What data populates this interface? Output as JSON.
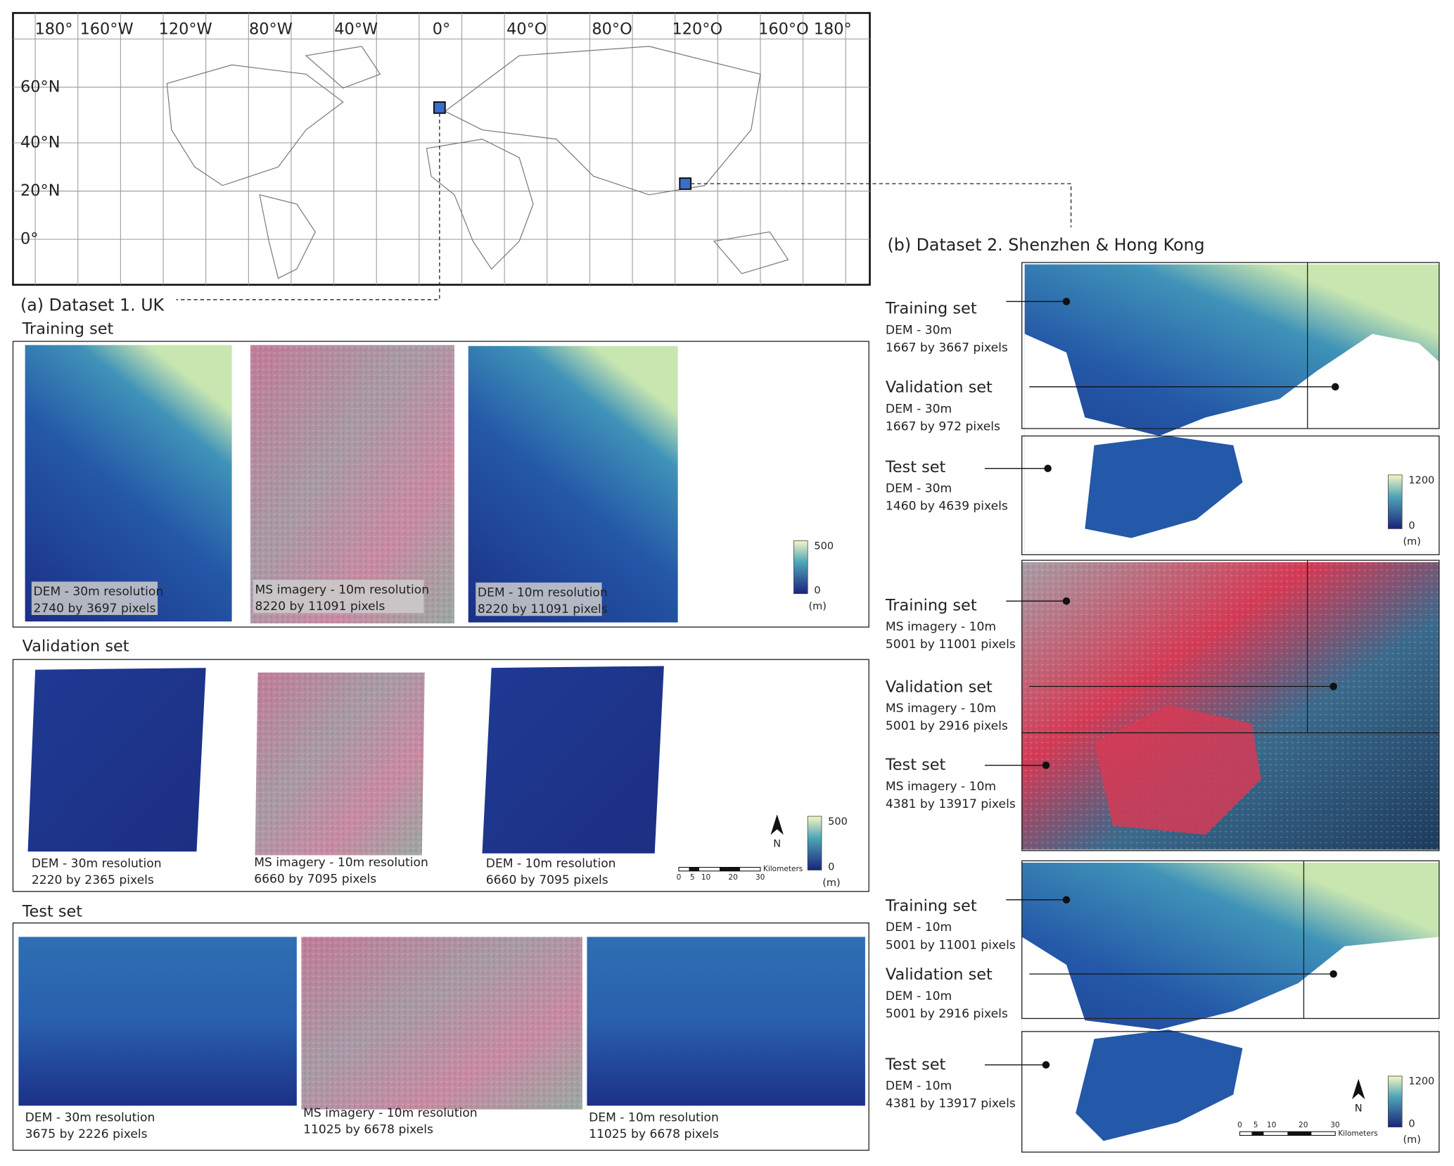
{
  "world_map": {
    "longitude_labels": [
      "180°",
      "160°W",
      "120°W",
      "80°W",
      "40°W",
      "0°",
      "40°O",
      "80°O",
      "120°O",
      "160°O",
      "180°"
    ],
    "latitude_labels": [
      "60°N",
      "40°N",
      "20°N",
      "0°"
    ]
  },
  "dataset_1": {
    "title": "(a) Dataset 1. UK",
    "sections": [
      {
        "title": "Training set",
        "images": [
          {
            "caption": [
              "DEM - 30m resolution",
              "2740 by 3697 pixels"
            ]
          },
          {
            "caption": [
              "MS imagery - 10m resolution",
              "8220 by 11091 pixels"
            ]
          },
          {
            "caption": [
              "DEM - 10m resolution",
              "8220 by 11091 pixels"
            ]
          }
        ],
        "colorbar": {
          "max": "500",
          "min": "0",
          "unit": "(m)"
        }
      },
      {
        "title": "Validation set",
        "images": [
          {
            "caption": [
              "DEM - 30m resolution",
              "2220 by 2365 pixels"
            ]
          },
          {
            "caption": [
              "MS imagery - 10m resolution",
              "6660 by 7095 pixels"
            ]
          },
          {
            "caption": [
              "DEM - 10m resolution",
              "6660 by 7095 pixels"
            ]
          }
        ],
        "colorbar": {
          "max": "500",
          "min": "0",
          "unit": "(m)"
        }
      },
      {
        "title": "Test set",
        "images": [
          {
            "caption": [
              "DEM - 30m resolution",
              "3675 by 2226 pixels"
            ]
          },
          {
            "caption": [
              "MS imagery - 10m resolution",
              "11025 by 6678 pixels"
            ]
          },
          {
            "caption": [
              "DEM - 10m resolution",
              "11025 by 6678 pixels"
            ]
          }
        ]
      }
    ],
    "north": "N",
    "scale_bar": {
      "ticks": [
        "0",
        "5",
        "10",
        "20",
        "30"
      ],
      "unit": "Kilometers"
    }
  },
  "dataset_2": {
    "title": "(b) Dataset 2. Shenzhen & Hong Kong",
    "groups": [
      {
        "entries": [
          {
            "name": "Training set",
            "lines": [
              "DEM - 30m",
              "1667 by 3667 pixels"
            ]
          },
          {
            "name": "Validation set",
            "lines": [
              "DEM - 30m",
              "1667 by 972 pixels"
            ]
          },
          {
            "name": "Test set",
            "lines": [
              "DEM - 30m",
              "1460 by 4639 pixels"
            ]
          }
        ],
        "colorbar": {
          "max": "1200",
          "min": "0",
          "unit": "(m)"
        }
      },
      {
        "entries": [
          {
            "name": "Training set",
            "lines": [
              "MS imagery - 10m",
              "5001 by 11001 pixels"
            ]
          },
          {
            "name": "Validation set",
            "lines": [
              "MS imagery - 10m",
              "5001 by 2916 pixels"
            ]
          },
          {
            "name": "Test set",
            "lines": [
              "MS imagery - 10m",
              "4381 by 13917 pixels"
            ]
          }
        ]
      },
      {
        "entries": [
          {
            "name": "Training set",
            "lines": [
              "DEM - 10m",
              "5001 by 11001 pixels"
            ]
          },
          {
            "name": "Validation set",
            "lines": [
              "DEM - 10m",
              "5001 by 2916 pixels"
            ]
          },
          {
            "name": "Test set",
            "lines": [
              "DEM - 10m",
              "4381 by 13917 pixels"
            ]
          }
        ],
        "colorbar": {
          "max": "1200",
          "min": "0",
          "unit": "(m)"
        }
      }
    ],
    "north": "N",
    "scale_bar": {
      "ticks": [
        "0",
        "5",
        "10",
        "20",
        "30"
      ],
      "unit": "Kilometers"
    }
  }
}
